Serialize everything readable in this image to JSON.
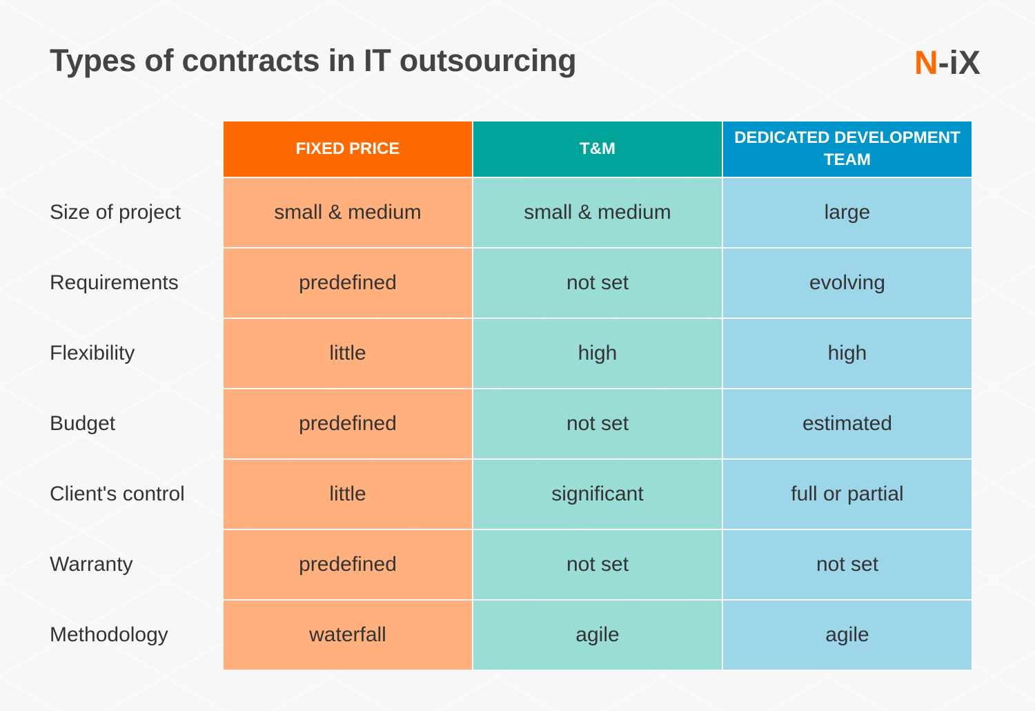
{
  "title": "Types of contracts in IT outsourcing",
  "logo": {
    "part1": "N",
    "part2": "-iX"
  },
  "colors": {
    "headers": [
      "#ff6a00",
      "#00a49a",
      "#0096cc"
    ],
    "cells": [
      "#ffb07c",
      "#9adcd6",
      "#9dd6e8"
    ]
  },
  "columns": [
    "FIXED PRICE",
    "T&M",
    "DEDICATED DEVELOPMENT TEAM"
  ],
  "rows": [
    {
      "label": "Size of project",
      "values": [
        "small & medium",
        "small & medium",
        "large"
      ]
    },
    {
      "label": "Requirements",
      "values": [
        "predefined",
        "not set",
        "evolving"
      ]
    },
    {
      "label": "Flexibility",
      "values": [
        "little",
        "high",
        "high"
      ]
    },
    {
      "label": "Budget",
      "values": [
        "predefined",
        "not set",
        "estimated"
      ]
    },
    {
      "label": "Client's control",
      "values": [
        "little",
        "significant",
        "full or partial"
      ]
    },
    {
      "label": "Warranty",
      "values": [
        "predefined",
        "not set",
        "not set"
      ]
    },
    {
      "label": "Methodology",
      "values": [
        "waterfall",
        "agile",
        "agile"
      ]
    }
  ]
}
